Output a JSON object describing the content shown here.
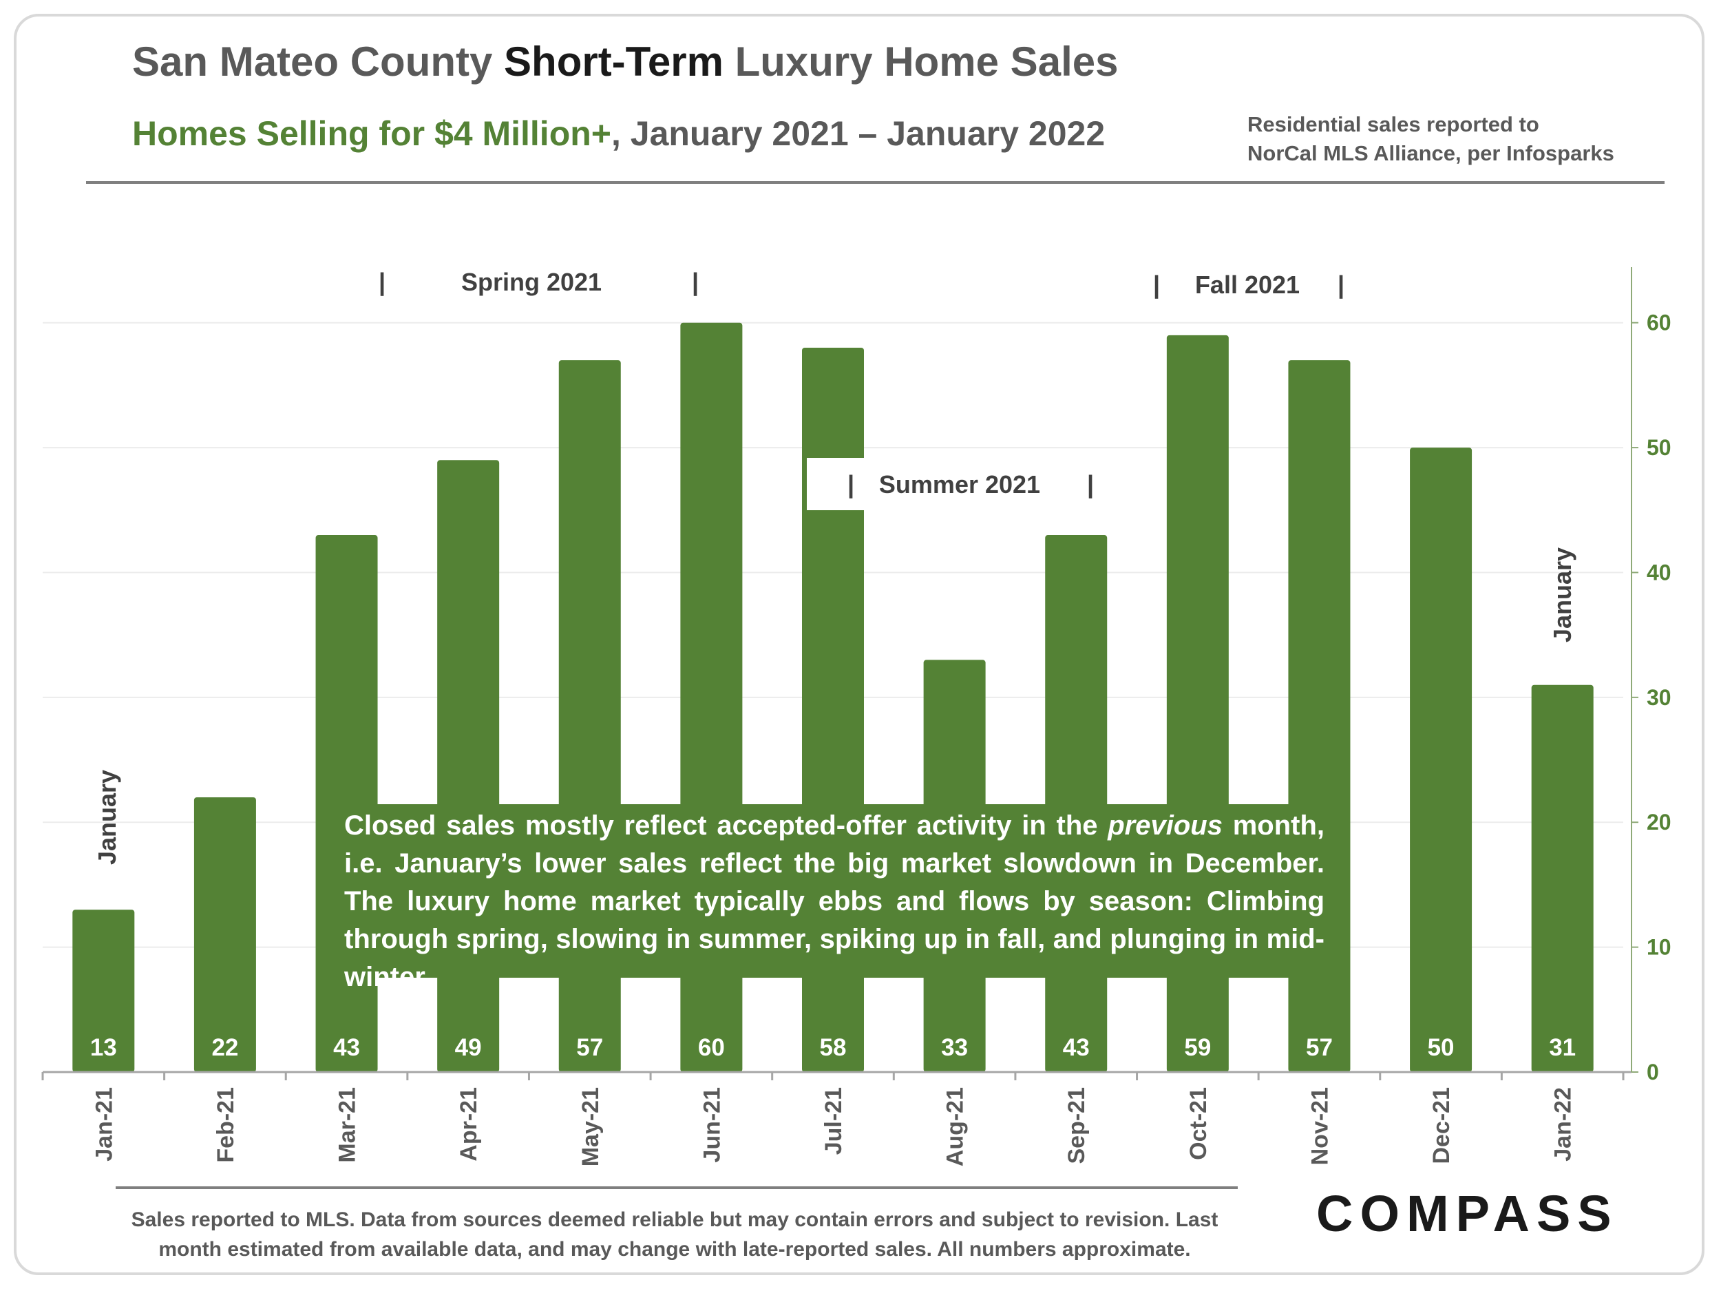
{
  "header": {
    "title_part1": "San Mateo County ",
    "title_part2": "Short-Term",
    "title_part3": " Luxury Home Sales",
    "subtitle_green": "Homes Selling for $4 Million+",
    "subtitle_rest": ", January 2021 – January 2022",
    "source_line1": "Residential sales reported to",
    "source_line2": "NorCal MLS Alliance, per Infosparks"
  },
  "chart_data": {
    "type": "bar",
    "categories": [
      "Jan-21",
      "Feb-21",
      "Mar-21",
      "Apr-21",
      "May-21",
      "Jun-21",
      "Jul-21",
      "Aug-21",
      "Sep-21",
      "Oct-21",
      "Nov-21",
      "Dec-21",
      "Jan-22"
    ],
    "values": [
      13,
      22,
      43,
      49,
      57,
      60,
      58,
      33,
      43,
      59,
      57,
      50,
      31
    ],
    "ylim": [
      0,
      65
    ],
    "yticks": [
      0,
      10,
      20,
      30,
      40,
      50,
      60
    ],
    "y_axis_side": "right",
    "grid": true,
    "bar_color": "#548235",
    "annotations": {
      "spring": "Spring 2021",
      "summer": "Summer 2021",
      "fall": "Fall 2021",
      "january_left": "January",
      "january_right": "January",
      "bracket": "|"
    }
  },
  "note": {
    "line1_a": "Closed sales mostly reflect accepted-offer activity in the ",
    "line1_em": "previous",
    "line1_b": " month,",
    "line2": "i.e. January’s lower sales reflect the big market slowdown in December. The",
    "line3": "luxury home market typically ebbs and flows by season: Climbing through",
    "line4": "spring, slowing in summer, spiking up in fall, and plunging in mid-winter."
  },
  "footer": {
    "note_line1": "Sales reported to MLS. Data from sources deemed reliable but may contain errors and subject to revision.  Last",
    "note_line2": "month estimated from available data, and may change with late-reported sales. All numbers approximate.",
    "logo": "COMPASS"
  },
  "colors": {
    "accent_green": "#548235",
    "text_gray": "#595959"
  }
}
